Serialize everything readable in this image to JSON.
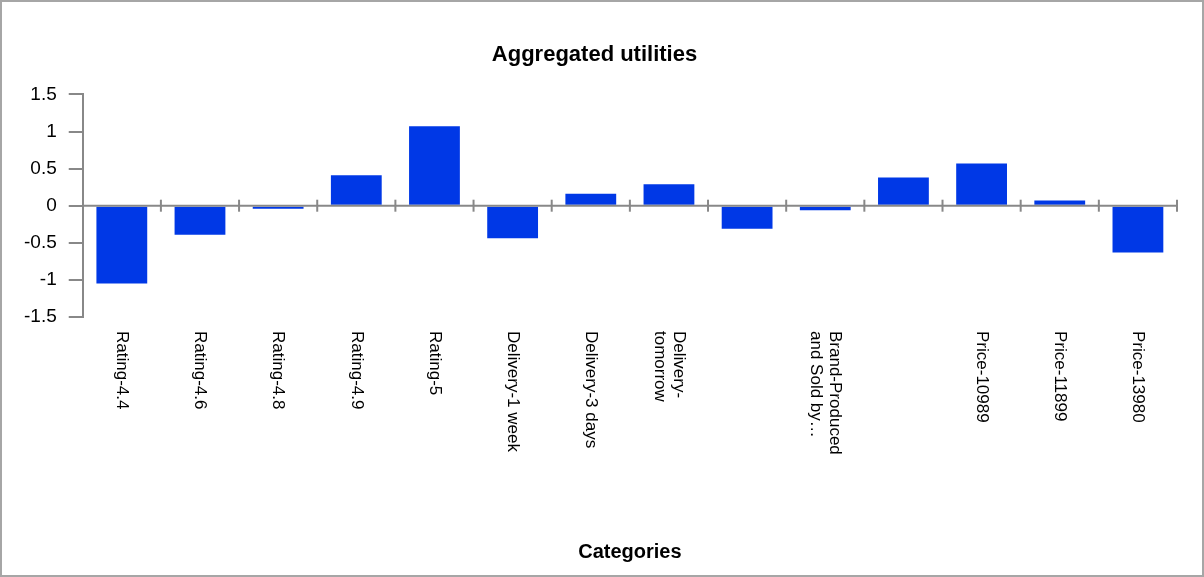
{
  "chart_data": {
    "type": "bar",
    "title": "Aggregated utilities",
    "xlabel": "Categories",
    "categories": [
      "Rating-4.4",
      "Rating-4.6",
      "Rating-4.8",
      "Rating-4.9",
      "Rating-5",
      "Delivery-1 week",
      "Delivery-3 days",
      "Delivery-tomorrow",
      null,
      "Brand-Produced and Sold by…",
      null,
      "Price-10989",
      "Price-11899",
      "Price-13980"
    ],
    "values": [
      -1.05,
      -0.39,
      -0.04,
      0.41,
      1.07,
      -0.44,
      0.16,
      0.29,
      -0.31,
      -0.06,
      0.38,
      0.57,
      0.07,
      -0.63
    ],
    "color": "#0038e6",
    "ylim": [
      -1.5,
      1.5
    ],
    "yticks": [
      -1.5,
      -1,
      -0.5,
      0,
      0.5,
      1,
      1.5
    ],
    "legend": false
  }
}
